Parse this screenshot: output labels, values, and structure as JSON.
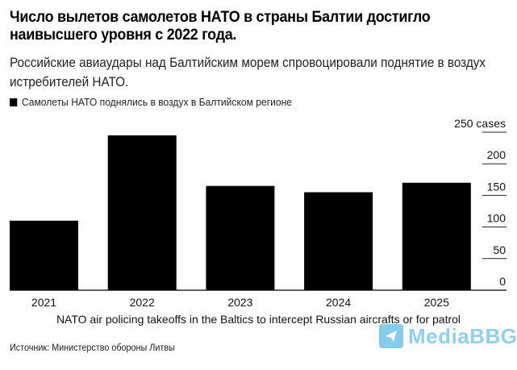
{
  "header": {
    "title": "Число вылетов самолетов НАТО в страны Балтии достигло наивысшего уровня с 2022 года.",
    "subtitle": "Российские авиаудары над Балтийским морем спровоцировали поднятие в воздух истребителей НАТО."
  },
  "footer": {
    "source": "Источник: Министерство обороны Литвы",
    "watermark_text": "MediaBBG",
    "watermark_icon": "telegram-paper-plane-icon",
    "watermark_color": "#6fc3ea"
  },
  "chart_data": {
    "type": "bar",
    "title": "Число вылетов самолетов НАТО в страны Балтии достигло наивысшего уровня с 2022 года.",
    "subtitle": "Российские авиаудары над Балтийским морем спровоцировали поднятие в воздух истребителей НАТО.",
    "legend": [
      {
        "label": "Самолеты НАТО поднялись в воздух в Балтийском регионе",
        "color": "#000000"
      }
    ],
    "legend_placement": "top-left",
    "categories": [
      "2021",
      "2022",
      "2023",
      "2024",
      "2025"
    ],
    "series": [
      {
        "name": "Самолеты НАТО поднялись в воздух в Балтийском регионе",
        "values": [
          110,
          245,
          165,
          155,
          170
        ],
        "color": "#000000"
      }
    ],
    "xlabel": "NATO air policing takeoffs in the Baltics to intercept Russian aircrafts or for patrol",
    "ylabel": "",
    "ylim": [
      0,
      250
    ],
    "yticks": [
      0,
      50,
      100,
      150,
      200,
      250
    ],
    "ytick_labels": [
      "0",
      "50",
      "100",
      "150",
      "200",
      "250 cases"
    ],
    "yaxis_position": "right",
    "grid": false
  }
}
